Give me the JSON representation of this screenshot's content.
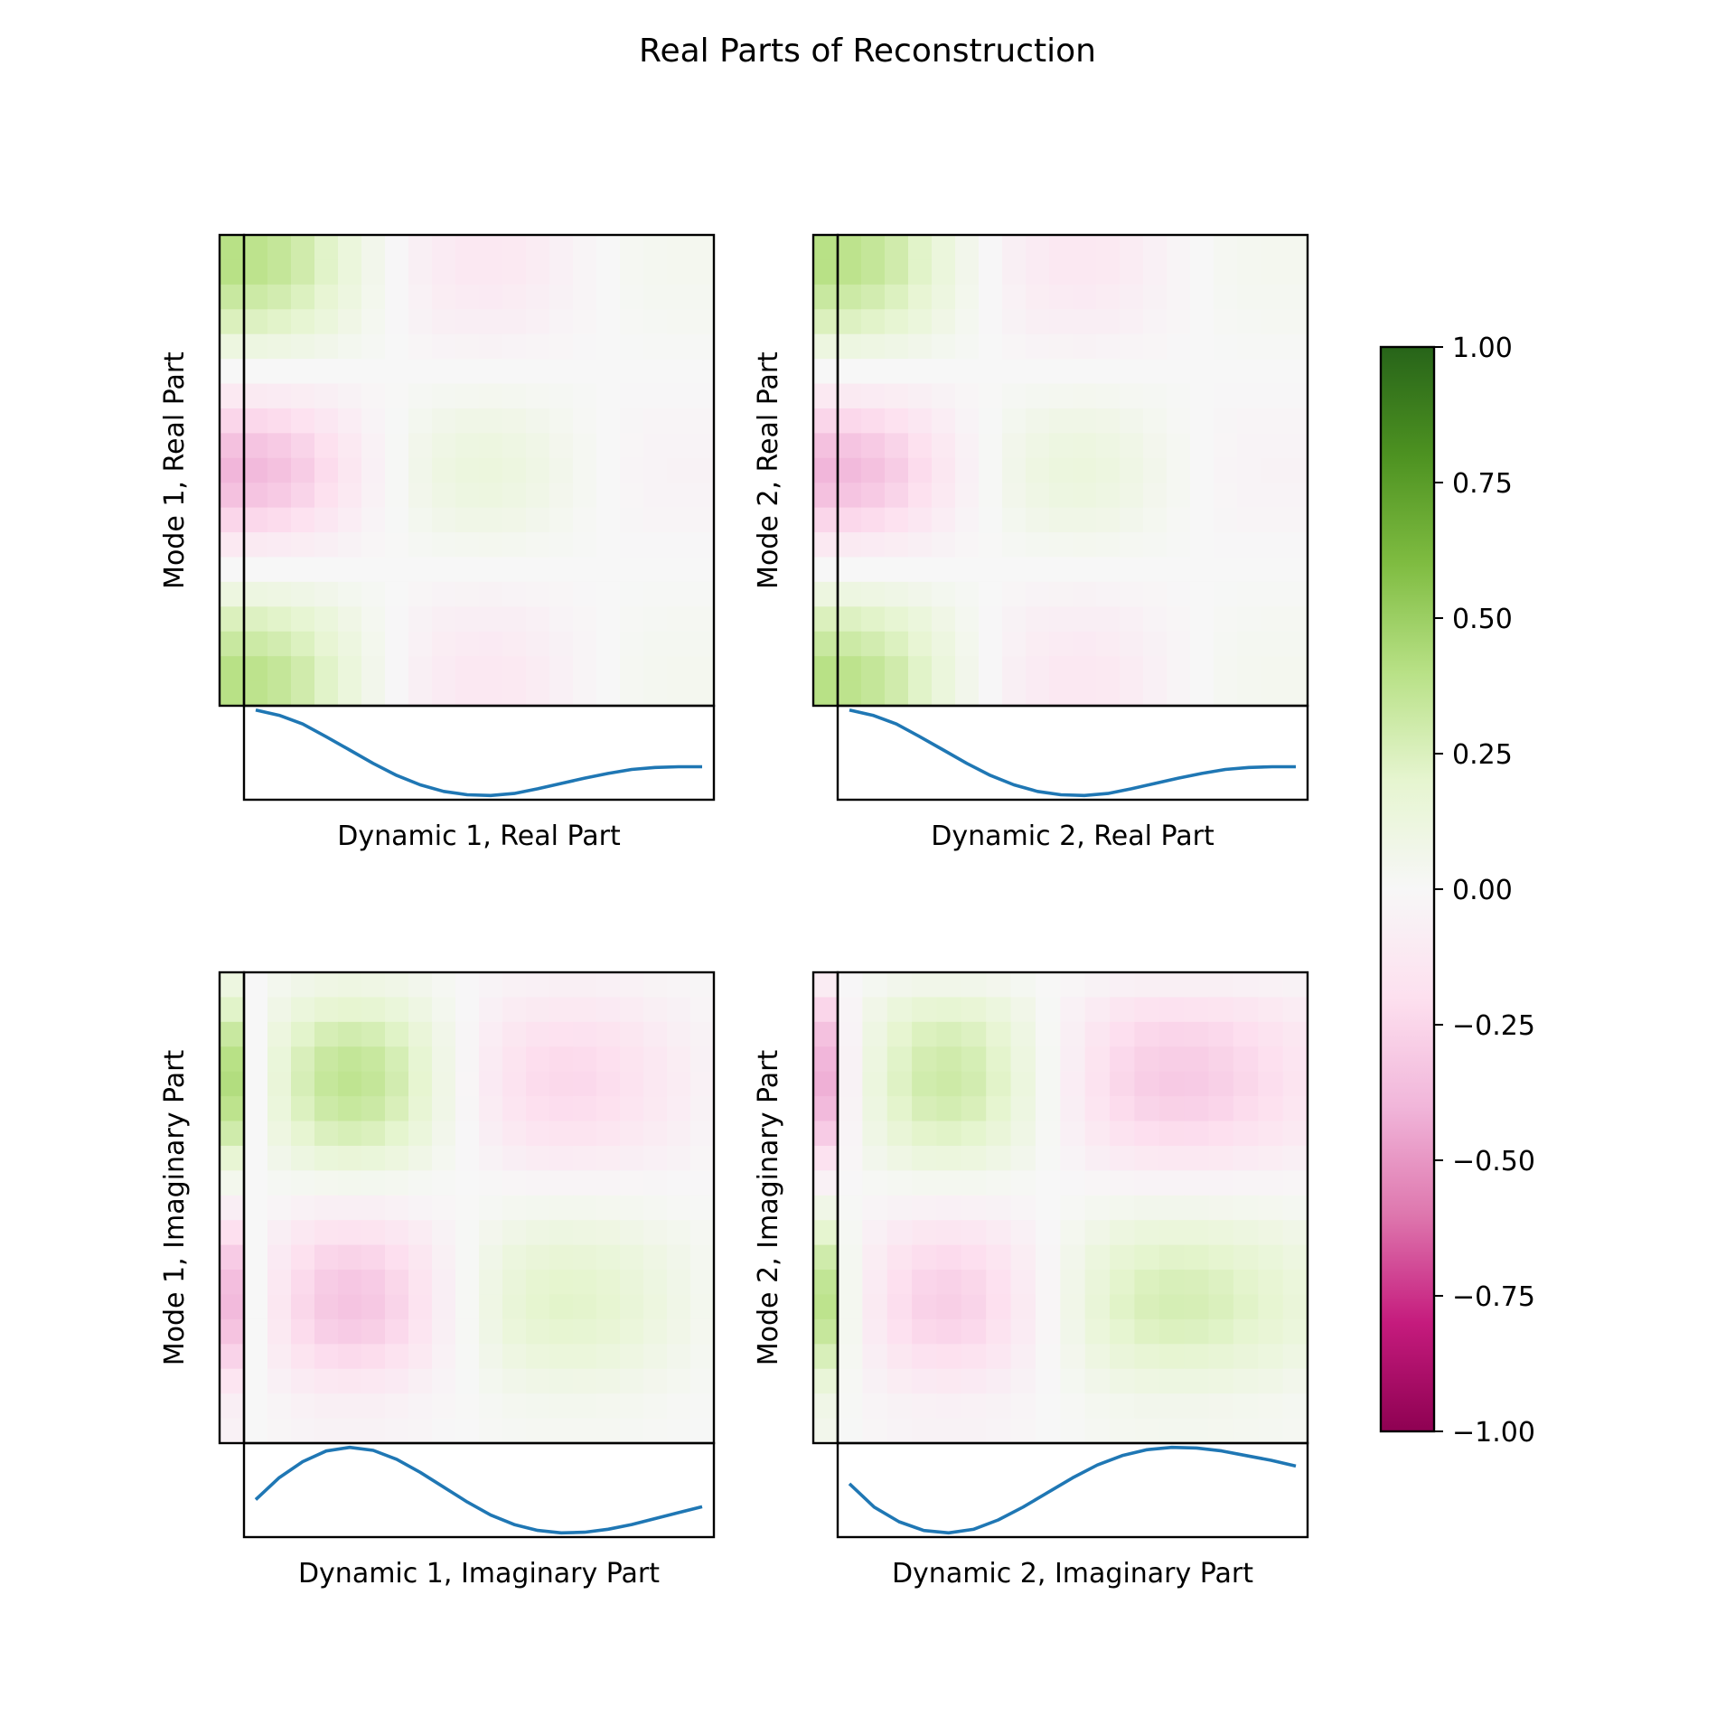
{
  "chart_data": {
    "type": "heatmap",
    "title": "Real Parts of Reconstruction",
    "colormap": "PiYG",
    "colorbar": {
      "vmin": -1.0,
      "vmax": 1.0,
      "ticks": [
        1.0,
        0.75,
        0.5,
        0.25,
        0.0,
        -0.25,
        -0.5,
        -0.75,
        -1.0
      ],
      "tick_labels": [
        "1.00",
        "0.75",
        "0.50",
        "0.25",
        "0.00",
        "−0.25",
        "−0.50",
        "−0.75",
        "−1.00"
      ],
      "placement": "right"
    },
    "panels": [
      {
        "ylabel": "Mode 1, Real Part",
        "xlabel": "Dynamic 1, Real Part",
        "mode": [
          0.4,
          0.4,
          0.33,
          0.25,
          0.12,
          0.0,
          -0.12,
          -0.25,
          -0.35,
          -0.4,
          -0.35,
          -0.25,
          -0.12,
          0.0,
          0.12,
          0.25,
          0.33,
          0.4,
          0.4
        ],
        "dynamic": [
          0.95,
          0.87,
          0.74,
          0.55,
          0.35,
          0.15,
          -0.03,
          -0.17,
          -0.27,
          -0.32,
          -0.33,
          -0.3,
          -0.23,
          -0.15,
          -0.07,
          0.0,
          0.06,
          0.09,
          0.1,
          0.1
        ]
      },
      {
        "ylabel": "Mode 2, Real Part",
        "xlabel": "Dynamic 2, Real Part",
        "mode": [
          0.4,
          0.4,
          0.33,
          0.25,
          0.12,
          0.0,
          -0.12,
          -0.25,
          -0.35,
          -0.4,
          -0.35,
          -0.25,
          -0.12,
          0.0,
          0.12,
          0.25,
          0.33,
          0.4,
          0.4
        ],
        "dynamic": [
          0.95,
          0.87,
          0.74,
          0.55,
          0.35,
          0.15,
          -0.03,
          -0.17,
          -0.27,
          -0.32,
          -0.33,
          -0.3,
          -0.23,
          -0.15,
          -0.07,
          0.0,
          0.06,
          0.09,
          0.1,
          0.1
        ]
      },
      {
        "ylabel": "Mode 1, Imaginary Part",
        "xlabel": "Dynamic 1, Imaginary Part",
        "mode": [
          0.12,
          0.22,
          0.33,
          0.4,
          0.42,
          0.38,
          0.3,
          0.18,
          0.05,
          -0.08,
          -0.2,
          -0.3,
          -0.36,
          -0.38,
          -0.34,
          -0.26,
          -0.16,
          -0.08,
          -0.05
        ],
        "dynamic": [
          0.0,
          0.37,
          0.64,
          0.82,
          0.88,
          0.83,
          0.68,
          0.46,
          0.21,
          -0.04,
          -0.26,
          -0.42,
          -0.52,
          -0.56,
          -0.55,
          -0.5,
          -0.42,
          -0.32,
          -0.22,
          -0.12
        ]
      },
      {
        "ylabel": "Mode 2, Imaginary Part",
        "xlabel": "Dynamic 2, Imaginary Part",
        "mode": [
          -0.1,
          -0.25,
          -0.35,
          -0.4,
          -0.42,
          -0.38,
          -0.3,
          -0.18,
          -0.05,
          0.08,
          0.2,
          0.3,
          0.36,
          0.38,
          0.34,
          0.26,
          0.16,
          0.08,
          0.06
        ],
        "dynamic": [
          0.1,
          -0.3,
          -0.55,
          -0.7,
          -0.74,
          -0.68,
          -0.52,
          -0.3,
          -0.05,
          0.2,
          0.42,
          0.58,
          0.68,
          0.72,
          0.71,
          0.66,
          0.58,
          0.5,
          0.4
        ]
      }
    ]
  }
}
